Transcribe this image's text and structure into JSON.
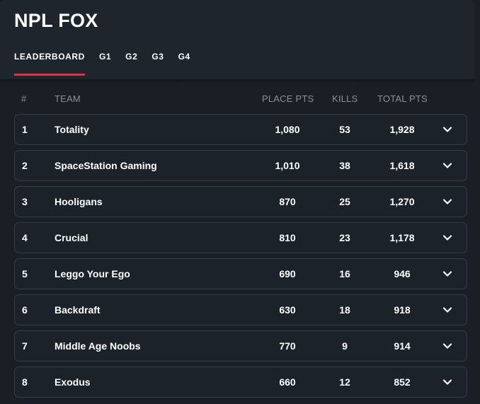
{
  "header": {
    "title": "NPL FOX",
    "tabs": [
      {
        "label": "LEADERBOARD",
        "active": true
      },
      {
        "label": "G1",
        "active": false
      },
      {
        "label": "G2",
        "active": false
      },
      {
        "label": "G3",
        "active": false
      },
      {
        "label": "G4",
        "active": false
      }
    ]
  },
  "colors": {
    "accent": "#e0313f",
    "background": "#1a1f26",
    "row_border": "#353c45",
    "muted_text": "#8a9099"
  },
  "table": {
    "columns": {
      "rank": "#",
      "team": "TEAM",
      "place_pts": "PLACE PTS",
      "kills": "KILLS",
      "total_pts": "TOTAL PTS"
    },
    "rows": [
      {
        "rank": "1",
        "team": "Totality",
        "place_pts": "1,080",
        "kills": "53",
        "total_pts": "1,928",
        "icon": "chevron-down-icon"
      },
      {
        "rank": "2",
        "team": "SpaceStation Gaming",
        "place_pts": "1,010",
        "kills": "38",
        "total_pts": "1,618",
        "icon": "chevron-down-icon"
      },
      {
        "rank": "3",
        "team": "Hooligans",
        "place_pts": "870",
        "kills": "25",
        "total_pts": "1,270",
        "icon": "chevron-down-icon"
      },
      {
        "rank": "4",
        "team": "Crucial",
        "place_pts": "810",
        "kills": "23",
        "total_pts": "1,178",
        "icon": "chevron-down-icon"
      },
      {
        "rank": "5",
        "team": "Leggo Your Ego",
        "place_pts": "690",
        "kills": "16",
        "total_pts": "946",
        "icon": "chevron-down-icon"
      },
      {
        "rank": "6",
        "team": "Backdraft",
        "place_pts": "630",
        "kills": "18",
        "total_pts": "918",
        "icon": "chevron-down-icon"
      },
      {
        "rank": "7",
        "team": "Middle Age Noobs",
        "place_pts": "770",
        "kills": "9",
        "total_pts": "914",
        "icon": "chevron-down-icon"
      },
      {
        "rank": "8",
        "team": "Exodus",
        "place_pts": "660",
        "kills": "12",
        "total_pts": "852",
        "icon": "chevron-down-icon"
      }
    ]
  }
}
